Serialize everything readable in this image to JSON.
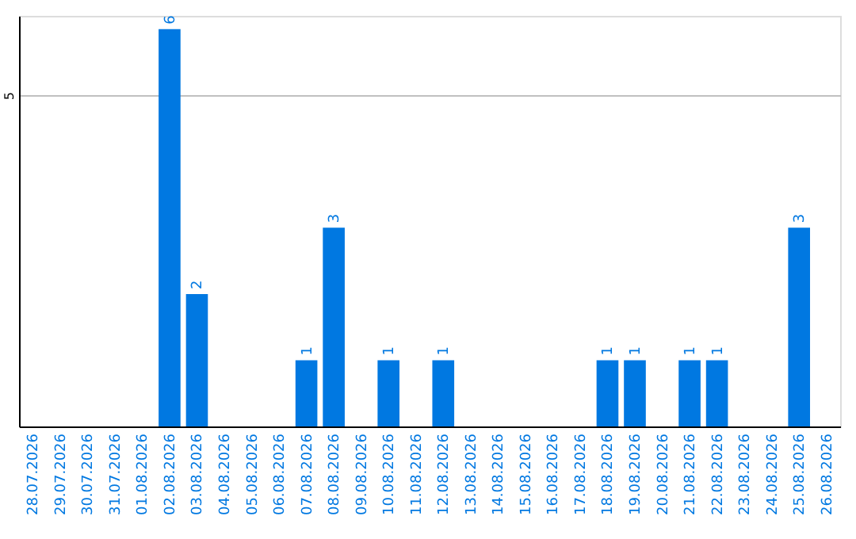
{
  "chart_data": {
    "type": "bar",
    "categories": [
      "28.07.2026",
      "29.07.2026",
      "30.07.2026",
      "31.07.2026",
      "01.08.2026",
      "02.08.2026",
      "03.08.2026",
      "04.08.2026",
      "05.08.2026",
      "06.08.2026",
      "07.08.2026",
      "08.08.2026",
      "09.08.2026",
      "10.08.2026",
      "11.08.2026",
      "12.08.2026",
      "13.08.2026",
      "14.08.2026",
      "15.08.2026",
      "16.08.2026",
      "17.08.2026",
      "18.08.2026",
      "19.08.2026",
      "20.08.2026",
      "21.08.2026",
      "22.08.2026",
      "23.08.2026",
      "24.08.2026",
      "25.08.2026",
      "26.08.2026"
    ],
    "values": [
      0,
      0,
      0,
      0,
      0,
      6,
      2,
      0,
      0,
      0,
      1,
      3,
      0,
      1,
      0,
      1,
      0,
      0,
      0,
      0,
      0,
      1,
      1,
      0,
      1,
      1,
      0,
      0,
      3,
      0
    ],
    "value_labels": [
      null,
      null,
      null,
      null,
      null,
      "6",
      "2",
      null,
      null,
      null,
      "1",
      "3",
      null,
      "1",
      null,
      "1",
      null,
      null,
      null,
      null,
      null,
      "1",
      "1",
      null,
      "1",
      "1",
      null,
      null,
      "3",
      null
    ],
    "color": "#0078e1",
    "ylim": [
      0,
      6.2
    ],
    "yticks": [
      5
    ],
    "grid": "y"
  }
}
